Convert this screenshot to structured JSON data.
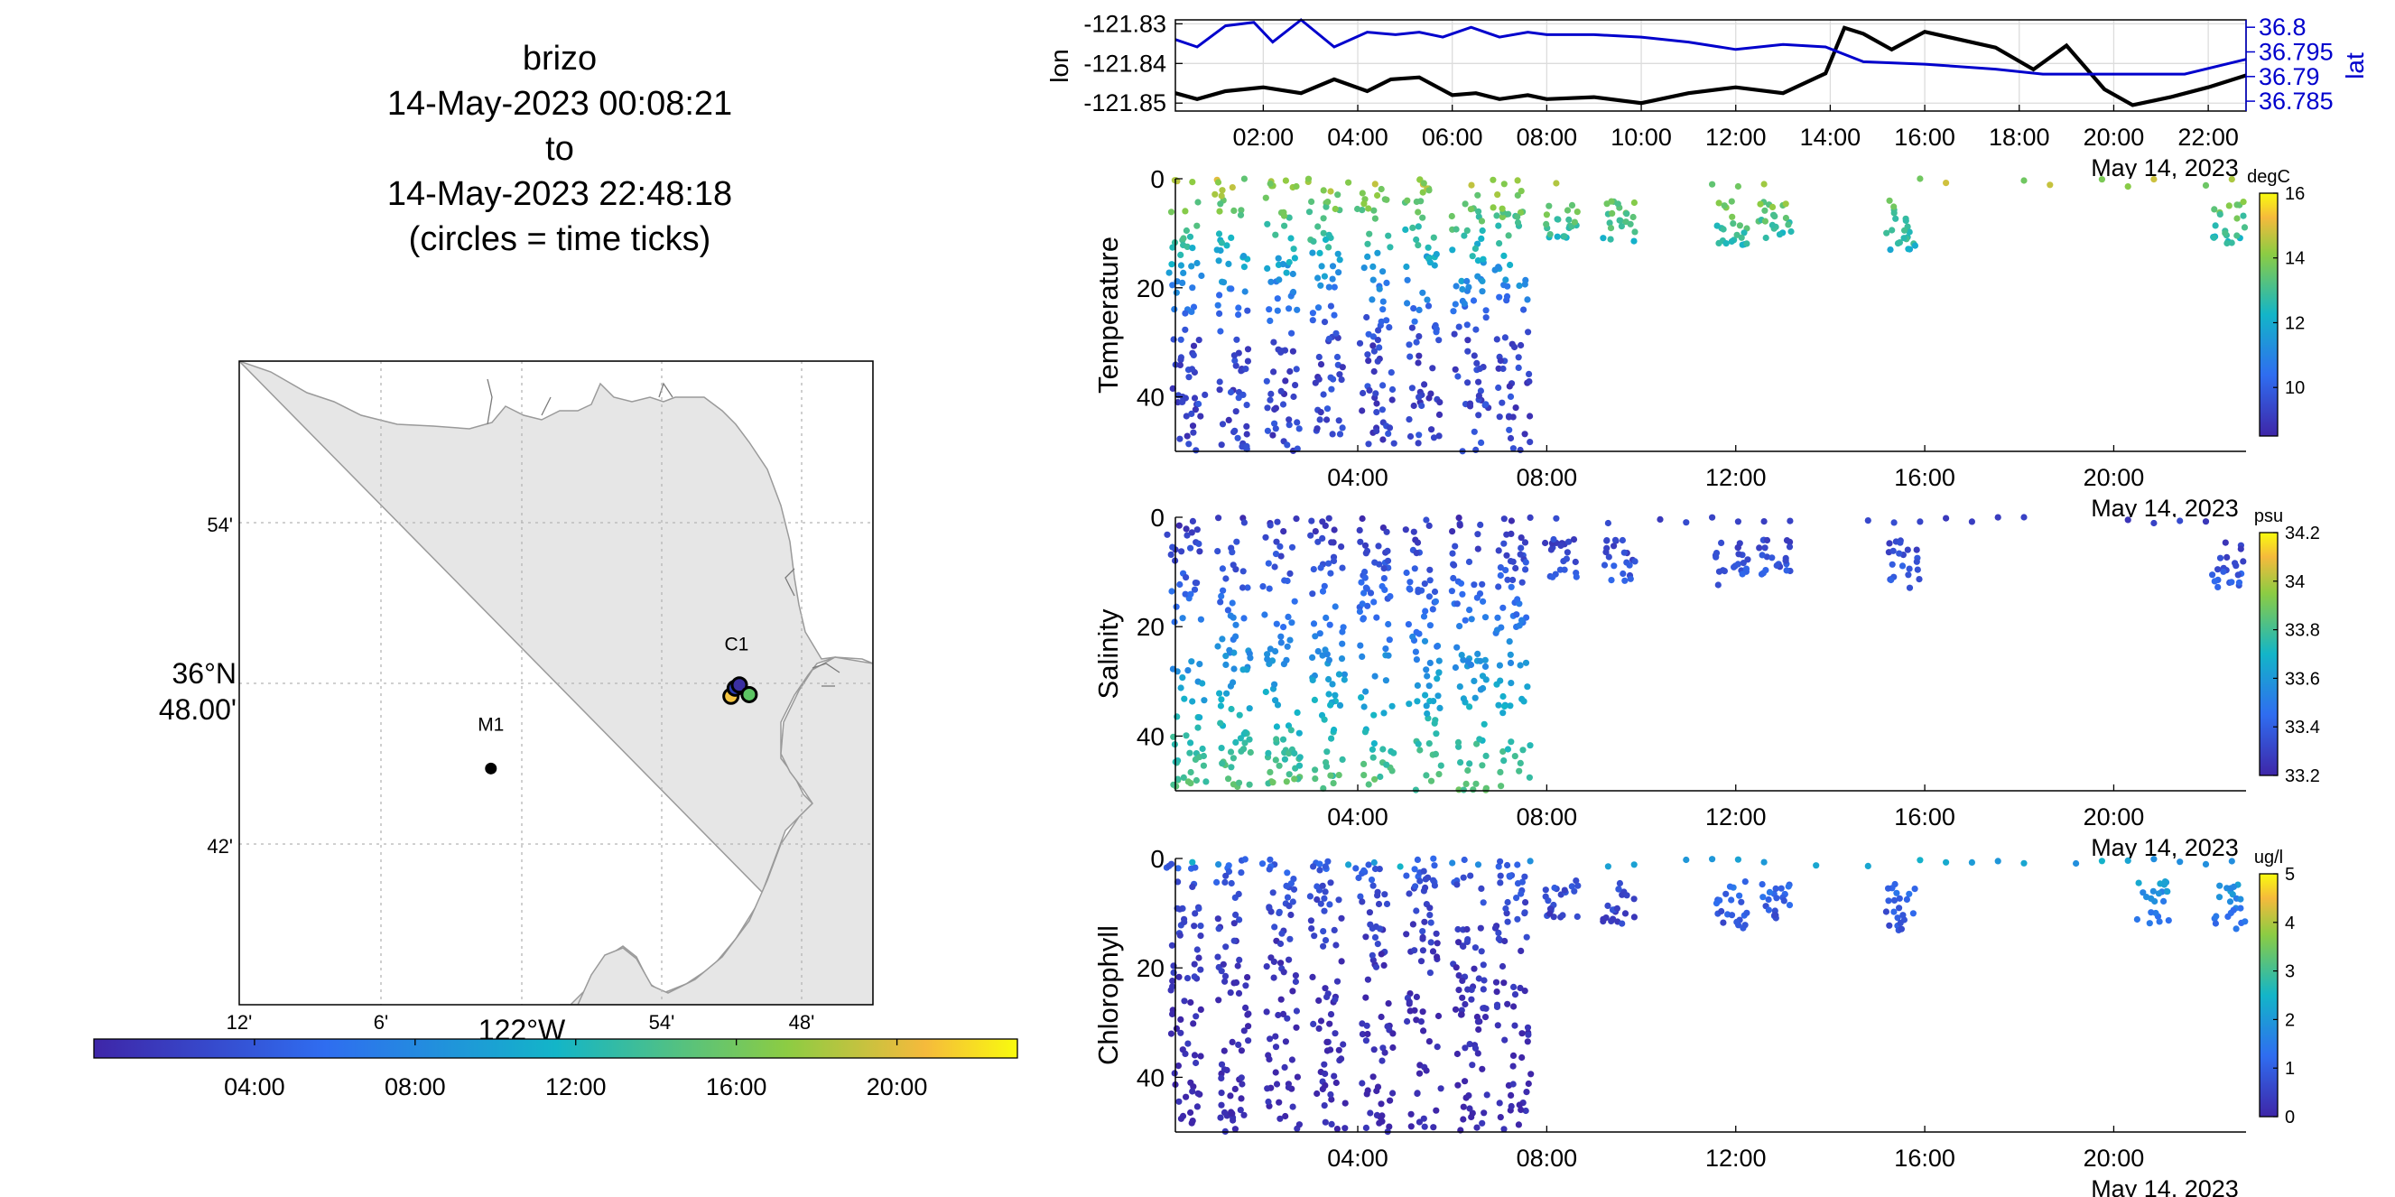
{
  "title": {
    "lines": [
      "brizo",
      "14-May-2023 00:08:21",
      "to",
      "14-May-2023 22:48:18",
      "(circles = time ticks)"
    ]
  },
  "map": {
    "lat_ticks": [
      "54'",
      "36°N 48.00'",
      "42'"
    ],
    "lat_label_deg": "36",
    "lat_label_min": "48.00'",
    "lon_ticks": [
      "12'",
      "6'",
      "122°W",
      "54'",
      "48'"
    ],
    "lon_label_deg": "122",
    "stations": [
      {
        "name": "C1",
        "lon": -121.847,
        "lat": 36.797
      },
      {
        "name": "M1",
        "lon": -122.022,
        "lat": 36.747
      }
    ],
    "track_points": [
      {
        "lon": -121.851,
        "lat": 36.792,
        "color": "#f4c542"
      },
      {
        "lon": -121.848,
        "lat": 36.797,
        "color": "#2a3bb0"
      },
      {
        "lon": -121.845,
        "lat": 36.799,
        "color": "#3a2fa0"
      },
      {
        "lon": -121.838,
        "lat": 36.793,
        "color": "#5cc563"
      }
    ],
    "land_color": "#e6e6e6"
  },
  "time_colorbar": {
    "ticks": [
      "04:00",
      "08:00",
      "12:00",
      "16:00",
      "20:00"
    ],
    "tick_hours": [
      4,
      8,
      12,
      16,
      20
    ],
    "range_hours": [
      0,
      23
    ]
  },
  "chart_data": [
    {
      "type": "line",
      "name": "position",
      "x_ticks": [
        "02:00",
        "04:00",
        "06:00",
        "08:00",
        "10:00",
        "12:00",
        "14:00",
        "16:00",
        "18:00",
        "20:00",
        "22:00"
      ],
      "x_tick_hours": [
        2,
        4,
        6,
        8,
        10,
        12,
        14,
        16,
        18,
        20,
        22
      ],
      "x_range_hours": [
        0.14,
        22.8
      ],
      "date_label": "May 14, 2023",
      "ylabel_left": "lon",
      "ylabel_right": "lat",
      "yticks_left": [
        "-121.83",
        "-121.84",
        "-121.85"
      ],
      "yticks_right": [
        "36.8",
        "36.795",
        "36.79",
        "36.785"
      ],
      "ylim_left": [
        -121.852,
        -121.829
      ],
      "ylim_right": [
        36.783,
        36.8015
      ],
      "series": [
        {
          "name": "lon",
          "color": "#000000",
          "x": [
            0.14,
            0.6,
            1.2,
            2,
            2.8,
            3.5,
            4.2,
            4.7,
            5.3,
            6,
            6.5,
            7,
            7.6,
            8,
            9,
            10,
            11,
            12,
            13,
            13.9,
            14.3,
            14.7,
            15.3,
            16,
            17.5,
            18.3,
            19,
            19.8,
            20.4,
            21.2,
            22,
            22.8
          ],
          "y": [
            -121.8475,
            -121.849,
            -121.847,
            -121.846,
            -121.8475,
            -121.844,
            -121.847,
            -121.844,
            -121.8435,
            -121.848,
            -121.8475,
            -121.849,
            -121.848,
            -121.849,
            -121.8485,
            -121.85,
            -121.8475,
            -121.846,
            -121.8475,
            -121.8425,
            -121.831,
            -121.8325,
            -121.8365,
            -121.832,
            -121.836,
            -121.8415,
            -121.8355,
            -121.8465,
            -121.8505,
            -121.8485,
            -121.846,
            -121.843
          ]
        },
        {
          "name": "lat",
          "color": "#0000cc",
          "x": [
            0.14,
            0.6,
            1.2,
            1.8,
            2.2,
            2.8,
            3.5,
            4.2,
            4.8,
            5.3,
            5.8,
            6.4,
            7,
            7.6,
            8,
            9,
            10,
            11,
            12,
            13,
            13.9,
            14.7,
            16,
            17.5,
            18.5,
            19.8,
            20.5,
            21.5,
            22.8
          ],
          "y": [
            36.7975,
            36.796,
            36.8003,
            36.801,
            36.797,
            36.8015,
            36.796,
            36.799,
            36.7985,
            36.799,
            36.798,
            36.8,
            36.798,
            36.799,
            36.7985,
            36.7985,
            36.798,
            36.797,
            36.7955,
            36.7965,
            36.796,
            36.793,
            36.7925,
            36.7915,
            36.7905,
            36.7905,
            36.7905,
            36.7905,
            36.7935
          ]
        }
      ]
    },
    {
      "type": "scatter",
      "name": "temperature",
      "ylabel": "Temperature",
      "units": "degC",
      "yticks": [
        "0",
        "20",
        "40"
      ],
      "ylim": [
        0,
        50
      ],
      "clim": [
        8.5,
        16
      ],
      "cbar_ticks": [
        "10",
        "12",
        "14",
        "16"
      ],
      "x_ticks": [
        "04:00",
        "08:00",
        "12:00",
        "16:00",
        "20:00"
      ],
      "date_label": "May 14, 2023",
      "profiles": [
        {
          "t": 0.3,
          "max_depth": 50
        },
        {
          "t": 1.3,
          "max_depth": 50
        },
        {
          "t": 2.3,
          "max_depth": 50
        },
        {
          "t": 3.3,
          "max_depth": 50
        },
        {
          "t": 4.3,
          "max_depth": 50
        },
        {
          "t": 5.3,
          "max_depth": 50
        },
        {
          "t": 6.3,
          "max_depth": 50
        },
        {
          "t": 7.2,
          "max_depth": 50
        },
        {
          "t": 8.3,
          "max_depth": 11
        },
        {
          "t": 9.5,
          "max_depth": 12
        },
        {
          "t": 11.9,
          "max_depth": 13
        },
        {
          "t": 12.8,
          "max_depth": 11
        },
        {
          "t": 15.5,
          "max_depth": 14
        },
        {
          "t": 22.4,
          "max_depth": 13
        }
      ]
    },
    {
      "type": "scatter",
      "name": "salinity",
      "ylabel": "Salinity",
      "units": "psu",
      "yticks": [
        "0",
        "20",
        "40"
      ],
      "ylim": [
        0,
        50
      ],
      "clim": [
        33.2,
        34.2
      ],
      "cbar_ticks": [
        "34.2",
        "34",
        "33.8",
        "33.6",
        "33.4",
        "33.2"
      ],
      "x_ticks": [
        "04:00",
        "08:00",
        "12:00",
        "16:00",
        "20:00"
      ],
      "date_label": "May 14, 2023",
      "profiles": [
        {
          "t": 0.3,
          "max_depth": 50
        },
        {
          "t": 1.3,
          "max_depth": 50
        },
        {
          "t": 2.3,
          "max_depth": 50
        },
        {
          "t": 3.3,
          "max_depth": 50
        },
        {
          "t": 4.3,
          "max_depth": 50
        },
        {
          "t": 5.3,
          "max_depth": 50
        },
        {
          "t": 6.3,
          "max_depth": 50
        },
        {
          "t": 7.2,
          "max_depth": 50
        },
        {
          "t": 8.3,
          "max_depth": 11
        },
        {
          "t": 9.5,
          "max_depth": 12
        },
        {
          "t": 11.9,
          "max_depth": 13
        },
        {
          "t": 12.8,
          "max_depth": 11
        },
        {
          "t": 15.5,
          "max_depth": 14
        },
        {
          "t": 22.4,
          "max_depth": 13
        }
      ]
    },
    {
      "type": "scatter",
      "name": "chlorophyll",
      "ylabel": "Chlorophyll",
      "units": "ug/l",
      "yticks": [
        "0",
        "20",
        "40"
      ],
      "ylim": [
        0,
        50
      ],
      "clim": [
        0,
        5
      ],
      "cbar_ticks": [
        "5",
        "4",
        "3",
        "2",
        "1",
        "0"
      ],
      "x_ticks": [
        "04:00",
        "08:00",
        "12:00",
        "16:00",
        "20:00"
      ],
      "date_label": "May 14, 2023",
      "profiles": [
        {
          "t": 0.3,
          "max_depth": 50
        },
        {
          "t": 1.3,
          "max_depth": 50
        },
        {
          "t": 2.3,
          "max_depth": 50
        },
        {
          "t": 3.3,
          "max_depth": 50
        },
        {
          "t": 4.3,
          "max_depth": 50
        },
        {
          "t": 5.3,
          "max_depth": 50
        },
        {
          "t": 6.3,
          "max_depth": 50
        },
        {
          "t": 7.2,
          "max_depth": 50
        },
        {
          "t": 8.3,
          "max_depth": 11
        },
        {
          "t": 9.5,
          "max_depth": 12
        },
        {
          "t": 11.9,
          "max_depth": 13
        },
        {
          "t": 12.8,
          "max_depth": 11
        },
        {
          "t": 15.5,
          "max_depth": 14
        },
        {
          "t": 20.8,
          "max_depth": 12
        },
        {
          "t": 22.4,
          "max_depth": 13
        }
      ]
    }
  ]
}
